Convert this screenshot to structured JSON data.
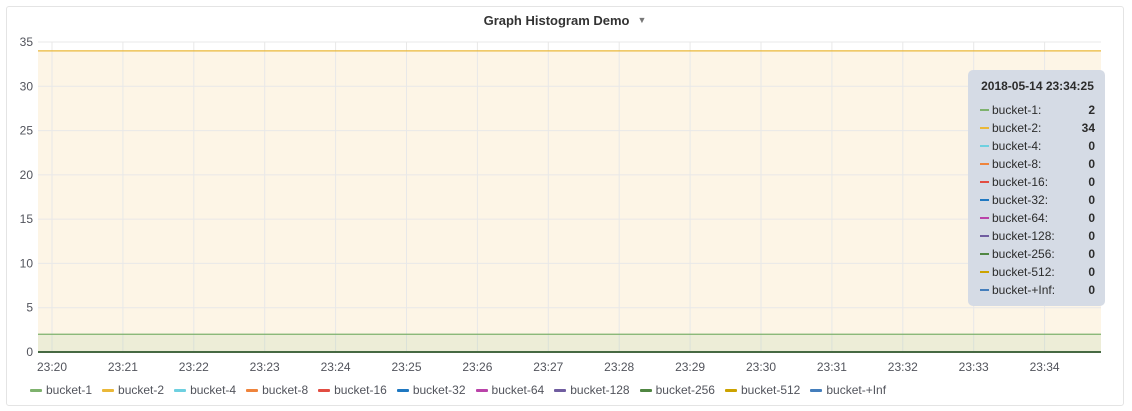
{
  "panel": {
    "title": "Graph Histogram Demo",
    "menu_icon": "caret-down-icon"
  },
  "colors": {
    "panel_bg": "#ffffff",
    "plot_fill": "#fdf5e6",
    "grid": "#e8e8e8"
  },
  "chart_data": {
    "type": "line",
    "title": "Graph Histogram Demo",
    "xlabel": "",
    "ylabel": "",
    "ylim": [
      0,
      35
    ],
    "yticks": [
      0,
      5,
      10,
      15,
      20,
      25,
      30,
      35
    ],
    "categories": [
      "23:20",
      "23:21",
      "23:22",
      "23:23",
      "23:24",
      "23:25",
      "23:26",
      "23:27",
      "23:28",
      "23:29",
      "23:30",
      "23:31",
      "23:32",
      "23:33",
      "23:34"
    ],
    "grid": true,
    "legend_placement": "bottom",
    "series": [
      {
        "name": "bucket-1",
        "color": "#7eb26d",
        "value": 2
      },
      {
        "name": "bucket-2",
        "color": "#eab839",
        "value": 34
      },
      {
        "name": "bucket-4",
        "color": "#6ed0e0",
        "value": 0
      },
      {
        "name": "bucket-8",
        "color": "#ef843c",
        "value": 0
      },
      {
        "name": "bucket-16",
        "color": "#e24d42",
        "value": 0
      },
      {
        "name": "bucket-32",
        "color": "#1f78c1",
        "value": 0
      },
      {
        "name": "bucket-64",
        "color": "#ba43a9",
        "value": 0
      },
      {
        "name": "bucket-128",
        "color": "#705da0",
        "value": 0
      },
      {
        "name": "bucket-256",
        "color": "#508642",
        "value": 0
      },
      {
        "name": "bucket-512",
        "color": "#cca300",
        "value": 0
      },
      {
        "name": "bucket-+Inf",
        "color": "#447ebc",
        "value": 0
      }
    ]
  },
  "tooltip": {
    "time": "2018-05-14 23:34:25",
    "rows": [
      {
        "label": "bucket-1:",
        "value": "2",
        "color": "#7eb26d"
      },
      {
        "label": "bucket-2:",
        "value": "34",
        "color": "#eab839"
      },
      {
        "label": "bucket-4:",
        "value": "0",
        "color": "#6ed0e0"
      },
      {
        "label": "bucket-8:",
        "value": "0",
        "color": "#ef843c"
      },
      {
        "label": "bucket-16:",
        "value": "0",
        "color": "#e24d42"
      },
      {
        "label": "bucket-32:",
        "value": "0",
        "color": "#1f78c1"
      },
      {
        "label": "bucket-64:",
        "value": "0",
        "color": "#ba43a9"
      },
      {
        "label": "bucket-128:",
        "value": "0",
        "color": "#705da0"
      },
      {
        "label": "bucket-256:",
        "value": "0",
        "color": "#508642"
      },
      {
        "label": "bucket-512:",
        "value": "0",
        "color": "#cca300"
      },
      {
        "label": "bucket-+Inf:",
        "value": "0",
        "color": "#447ebc"
      }
    ]
  }
}
